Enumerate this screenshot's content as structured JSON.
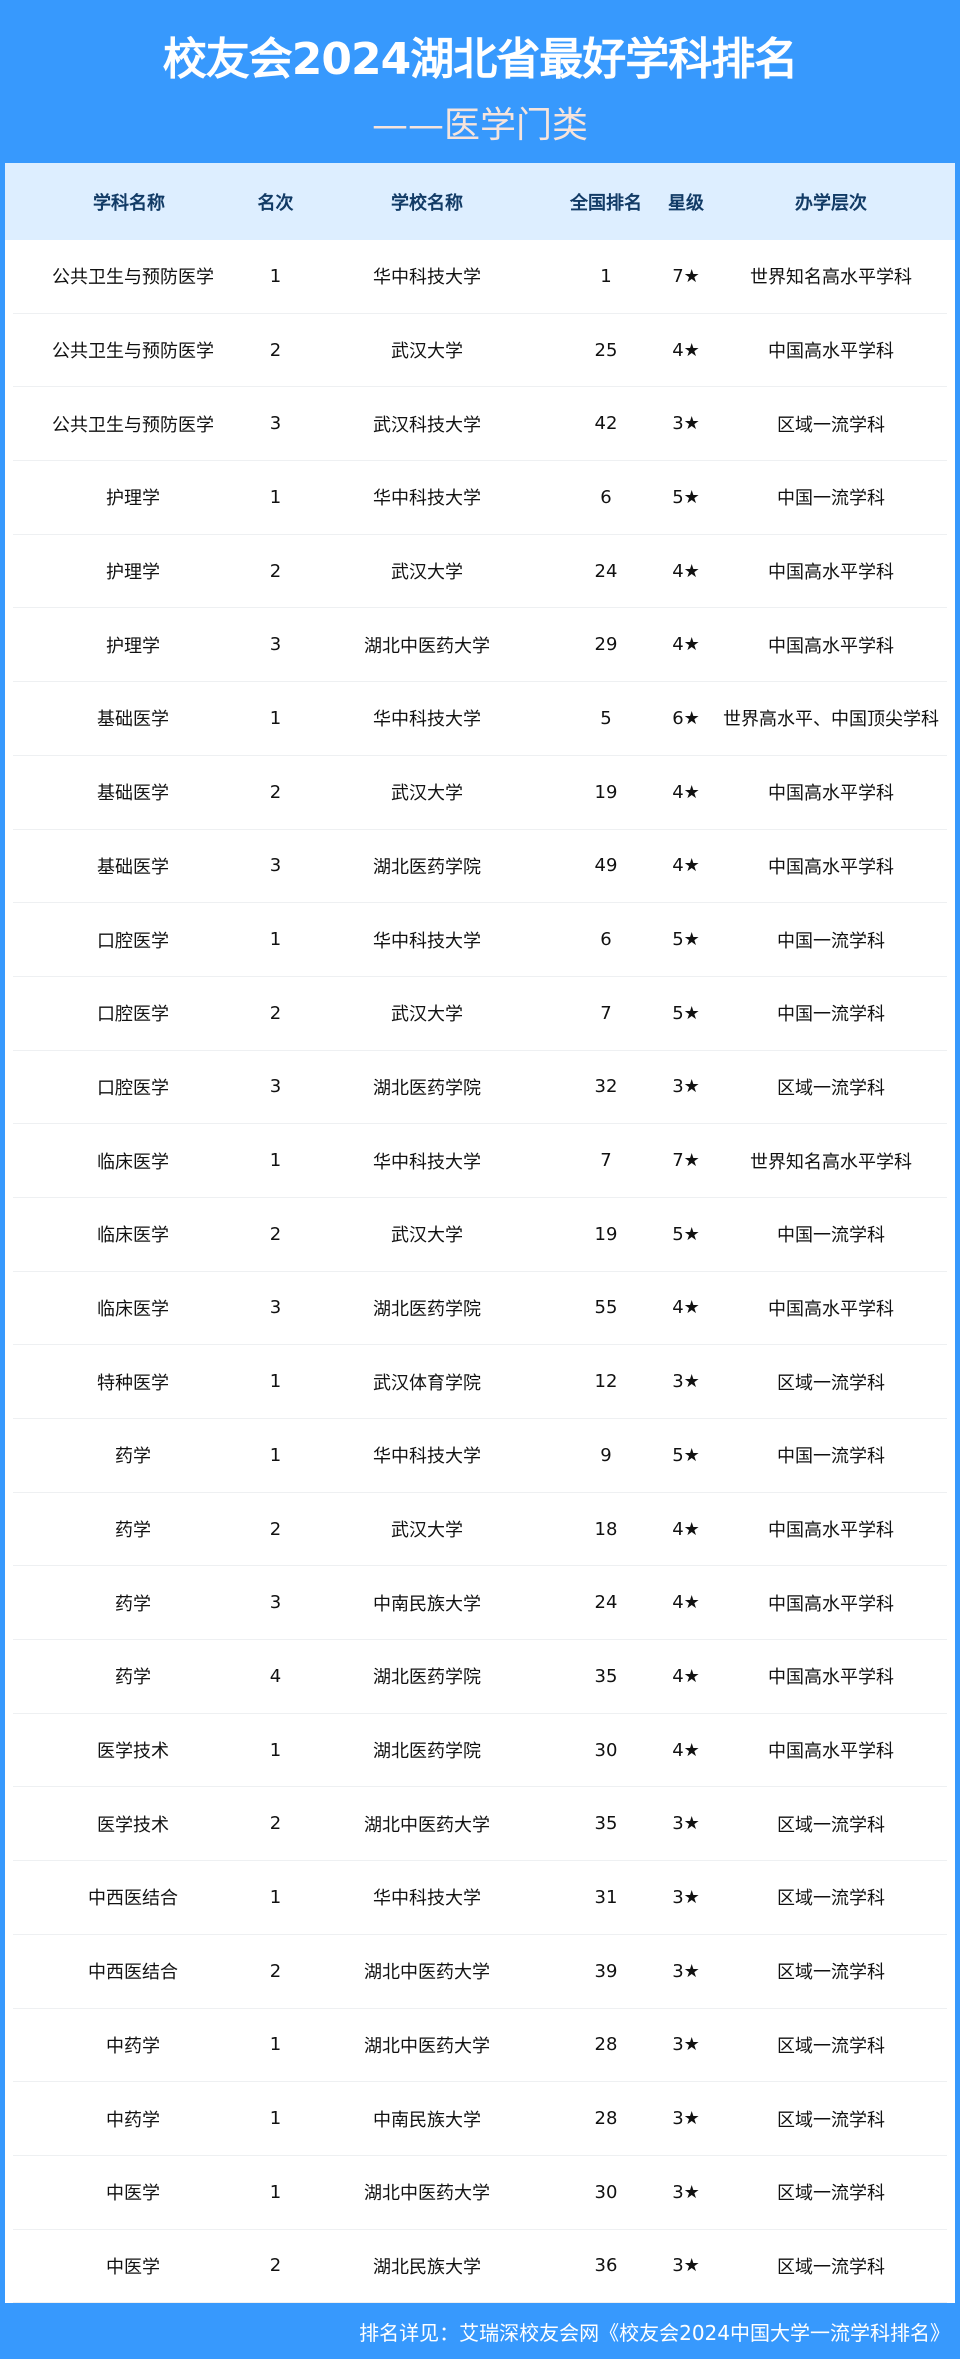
{
  "header": {
    "title": "校友会2024湖北省最好学科排名",
    "subtitle": "——医学门类"
  },
  "columns": [
    "学科名称",
    "名次",
    "学校名称",
    "全国排名",
    "星级",
    "办学层次"
  ],
  "rows": [
    [
      "公共卫生与预防医学",
      "1",
      "华中科技大学",
      "1",
      "7★",
      "世界知名高水平学科"
    ],
    [
      "公共卫生与预防医学",
      "2",
      "武汉大学",
      "25",
      "4★",
      "中国高水平学科"
    ],
    [
      "公共卫生与预防医学",
      "3",
      "武汉科技大学",
      "42",
      "3★",
      "区域一流学科"
    ],
    [
      "护理学",
      "1",
      "华中科技大学",
      "6",
      "5★",
      "中国一流学科"
    ],
    [
      "护理学",
      "2",
      "武汉大学",
      "24",
      "4★",
      "中国高水平学科"
    ],
    [
      "护理学",
      "3",
      "湖北中医药大学",
      "29",
      "4★",
      "中国高水平学科"
    ],
    [
      "基础医学",
      "1",
      "华中科技大学",
      "5",
      "6★",
      "世界高水平、中国顶尖学科"
    ],
    [
      "基础医学",
      "2",
      "武汉大学",
      "19",
      "4★",
      "中国高水平学科"
    ],
    [
      "基础医学",
      "3",
      "湖北医药学院",
      "49",
      "4★",
      "中国高水平学科"
    ],
    [
      "口腔医学",
      "1",
      "华中科技大学",
      "6",
      "5★",
      "中国一流学科"
    ],
    [
      "口腔医学",
      "2",
      "武汉大学",
      "7",
      "5★",
      "中国一流学科"
    ],
    [
      "口腔医学",
      "3",
      "湖北医药学院",
      "32",
      "3★",
      "区域一流学科"
    ],
    [
      "临床医学",
      "1",
      "华中科技大学",
      "7",
      "7★",
      "世界知名高水平学科"
    ],
    [
      "临床医学",
      "2",
      "武汉大学",
      "19",
      "5★",
      "中国一流学科"
    ],
    [
      "临床医学",
      "3",
      "湖北医药学院",
      "55",
      "4★",
      "中国高水平学科"
    ],
    [
      "特种医学",
      "1",
      "武汉体育学院",
      "12",
      "3★",
      "区域一流学科"
    ],
    [
      "药学",
      "1",
      "华中科技大学",
      "9",
      "5★",
      "中国一流学科"
    ],
    [
      "药学",
      "2",
      "武汉大学",
      "18",
      "4★",
      "中国高水平学科"
    ],
    [
      "药学",
      "3",
      "中南民族大学",
      "24",
      "4★",
      "中国高水平学科"
    ],
    [
      "药学",
      "4",
      "湖北医药学院",
      "35",
      "4★",
      "中国高水平学科"
    ],
    [
      "医学技术",
      "1",
      "湖北医药学院",
      "30",
      "4★",
      "中国高水平学科"
    ],
    [
      "医学技术",
      "2",
      "湖北中医药大学",
      "35",
      "3★",
      "区域一流学科"
    ],
    [
      "中西医结合",
      "1",
      "华中科技大学",
      "31",
      "3★",
      "区域一流学科"
    ],
    [
      "中西医结合",
      "2",
      "湖北中医药大学",
      "39",
      "3★",
      "区域一流学科"
    ],
    [
      "中药学",
      "1",
      "湖北中医药大学",
      "28",
      "3★",
      "区域一流学科"
    ],
    [
      "中药学",
      "1",
      "中南民族大学",
      "28",
      "3★",
      "区域一流学科"
    ],
    [
      "中医学",
      "1",
      "湖北中医药大学",
      "30",
      "3★",
      "区域一流学科"
    ],
    [
      "中医学",
      "2",
      "湖北民族大学",
      "36",
      "3★",
      "区域一流学科"
    ]
  ],
  "footer": {
    "text": "排名详见：艾瑞深校友会网《校友会2024中国大学一流学科排名》"
  },
  "colors": {
    "brand": "#3799fd",
    "header_row": "#ddeeff",
    "header_text": "#123b66"
  }
}
